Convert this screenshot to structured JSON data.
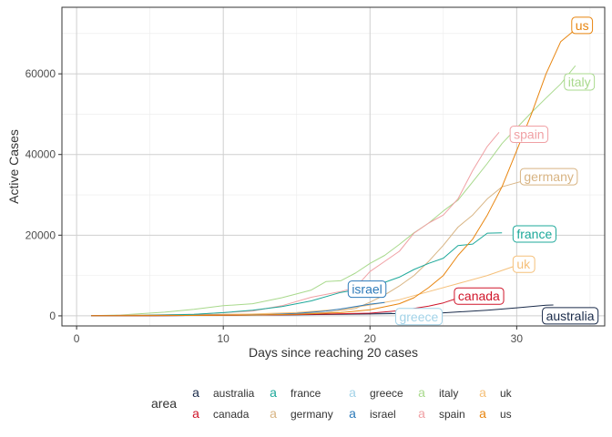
{
  "chart_data": {
    "type": "line",
    "xlabel": "Days since reaching 20 cases",
    "ylabel": "Active Cases",
    "xlim": [
      -1,
      36
    ],
    "ylim": [
      -2500,
      76500
    ],
    "xticks": [
      0,
      10,
      20,
      30
    ],
    "yticks": [
      0,
      20000,
      40000,
      60000
    ],
    "ytick_labels": [
      "0",
      "20000",
      "40000",
      "60000"
    ],
    "xtick_labels": [
      "0",
      "10",
      "20",
      "30"
    ],
    "grid": true,
    "legend": {
      "title": "area",
      "placement": "bottom",
      "glyph": "a"
    },
    "series": [
      {
        "name": "australia",
        "color": "#1a2b4a",
        "x": [
          1,
          5,
          10,
          15,
          20,
          25,
          28,
          30,
          32,
          32.5
        ],
        "y": [
          20,
          60,
          150,
          280,
          450,
          750,
          1400,
          2000,
          2650,
          2700
        ],
        "label_at": [
          32,
          0
        ],
        "label_anchor": "start"
      },
      {
        "name": "canada",
        "color": "#d0152a",
        "x": [
          1,
          5,
          10,
          15,
          20,
          22,
          24,
          25,
          26
        ],
        "y": [
          20,
          60,
          150,
          300,
          650,
          1300,
          2400,
          3200,
          4400
        ],
        "label_at": [
          26,
          4900
        ],
        "label_anchor": "start"
      },
      {
        "name": "france",
        "color": "#1ca89a",
        "x": [
          1,
          3,
          6,
          8,
          10,
          12,
          14,
          16,
          18,
          20,
          22,
          23,
          24,
          25,
          26,
          27,
          28,
          29
        ],
        "y": [
          20,
          60,
          200,
          400,
          800,
          1400,
          2300,
          3700,
          5800,
          7000,
          9600,
          11500,
          13000,
          14300,
          17400,
          17800,
          20500,
          20600
        ],
        "label_at": [
          30,
          20300
        ],
        "label_anchor": "start"
      },
      {
        "name": "germany",
        "color": "#d8b483",
        "x": [
          1,
          8,
          14,
          17,
          19,
          20,
          21,
          22,
          23,
          24,
          25,
          26,
          27,
          28,
          29,
          30,
          31
        ],
        "y": [
          20,
          300,
          500,
          800,
          1800,
          3400,
          5200,
          7400,
          10000,
          13500,
          17500,
          22000,
          25000,
          29000,
          32000,
          33000,
          34000
        ],
        "label_at": [
          30.5,
          34500
        ],
        "label_anchor": "start"
      },
      {
        "name": "greece",
        "color": "#a3d3e8",
        "x": [
          1,
          5,
          10,
          15,
          18,
          20,
          21.5
        ],
        "y": [
          20,
          50,
          100,
          200,
          400,
          600,
          780
        ],
        "label_at": [
          22,
          -200
        ],
        "label_anchor": "start"
      },
      {
        "name": "israel",
        "color": "#2d7ab9",
        "x": [
          1,
          5,
          10,
          13,
          15,
          17,
          18,
          19,
          20,
          21
        ],
        "y": [
          20,
          60,
          150,
          300,
          600,
          1200,
          1700,
          2300,
          2900,
          3300
        ],
        "label_at": [
          19.8,
          6600
        ],
        "label_anchor": "middle"
      },
      {
        "name": "italy",
        "color": "#a8d98c",
        "x": [
          1,
          3,
          6,
          8,
          10,
          12,
          14,
          16,
          17,
          18,
          19,
          20,
          21,
          22,
          23,
          24,
          25,
          26,
          27,
          28,
          29,
          30,
          31,
          32,
          33,
          34
        ],
        "y": [
          20,
          200,
          900,
          1600,
          2500,
          3000,
          4500,
          6400,
          8500,
          8700,
          10600,
          13000,
          15000,
          17700,
          20600,
          23000,
          26000,
          28700,
          33200,
          37800,
          42700,
          46600,
          50400,
          54000,
          57500,
          62000
        ],
        "label_at": [
          33.5,
          58000
        ],
        "label_anchor": "start"
      },
      {
        "name": "spain",
        "color": "#f0a0a4",
        "x": [
          1,
          8,
          12,
          14,
          16,
          18,
          19,
          20,
          21,
          22,
          23,
          24,
          25,
          26,
          27,
          28,
          28.8
        ],
        "y": [
          20,
          400,
          1200,
          2500,
          4600,
          6000,
          7000,
          11000,
          13500,
          16000,
          20500,
          23000,
          25000,
          29000,
          36000,
          42000,
          45500
        ],
        "label_at": [
          29.8,
          45000
        ],
        "label_anchor": "start"
      },
      {
        "name": "uk",
        "color": "#f5c07a",
        "x": [
          1,
          8,
          12,
          15,
          18,
          20,
          22,
          24,
          26,
          28,
          30
        ],
        "y": [
          20,
          250,
          450,
          850,
          1600,
          2700,
          4000,
          6000,
          8000,
          10000,
          12500
        ],
        "label_at": [
          30,
          12800
        ],
        "label_anchor": "start"
      },
      {
        "name": "us",
        "color": "#e8850f",
        "x": [
          1,
          8,
          12,
          15,
          18,
          20,
          22,
          23,
          24,
          25,
          26,
          27,
          28,
          29,
          30,
          31,
          32,
          33,
          34
        ],
        "y": [
          20,
          100,
          200,
          400,
          800,
          1500,
          3000,
          4500,
          7000,
          10000,
          15000,
          19000,
          25000,
          32000,
          41000,
          50000,
          60000,
          68000,
          71000
        ],
        "label_at": [
          34,
          72000
        ],
        "label_anchor": "start"
      }
    ]
  }
}
